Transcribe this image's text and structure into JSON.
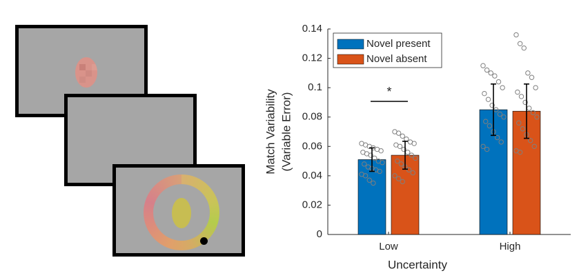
{
  "chart_data": {
    "type": "bar",
    "categories": [
      "Low",
      "High"
    ],
    "x_label": "Uncertainty",
    "y_label": [
      "Match Variability",
      "(Variable Error)"
    ],
    "ylim": [
      0,
      0.14
    ],
    "yticks": [
      0,
      0.02,
      0.04,
      0.06,
      0.08,
      0.1,
      0.12,
      0.14
    ],
    "legend": "upper left",
    "annotations": [
      {
        "text": "*"
      }
    ],
    "series": [
      {
        "name": "Novel present",
        "color": "#0072bd",
        "values": [
          0.051,
          0.085
        ],
        "errors": [
          0.008,
          0.0175
        ],
        "points": [
          [
            0.062,
            0.061,
            0.06,
            0.059,
            0.058,
            0.057,
            0.056,
            0.055,
            0.054,
            0.052,
            0.05,
            0.049,
            0.048,
            0.046,
            0.045,
            0.044,
            0.043,
            0.041,
            0.04,
            0.037,
            0.035
          ],
          [
            0.115,
            0.112,
            0.11,
            0.108,
            0.104,
            0.1,
            0.096,
            0.092,
            0.088,
            0.085,
            0.082,
            0.08,
            0.077,
            0.074,
            0.07,
            0.066,
            0.063,
            0.06,
            0.058
          ]
        ]
      },
      {
        "name": "Novel absent",
        "color": "#d95319",
        "values": [
          0.054,
          0.084
        ],
        "errors": [
          0.0095,
          0.0185
        ],
        "points": [
          [
            0.07,
            0.069,
            0.067,
            0.065,
            0.063,
            0.062,
            0.061,
            0.06,
            0.058,
            0.056,
            0.054,
            0.052,
            0.05,
            0.048,
            0.046,
            0.044,
            0.042,
            0.04,
            0.038,
            0.036
          ],
          [
            0.136,
            0.13,
            0.127,
            0.11,
            0.107,
            0.1,
            0.097,
            0.094,
            0.09,
            0.086,
            0.083,
            0.08,
            0.076,
            0.072,
            0.068,
            0.064,
            0.06,
            0.057,
            0.056
          ]
        ]
      }
    ]
  }
}
